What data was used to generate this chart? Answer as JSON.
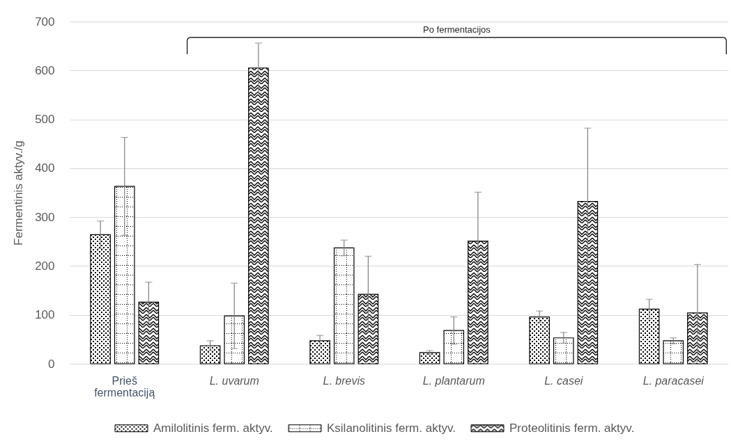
{
  "chart_data": {
    "type": "bar",
    "ylabel": "Fermentinis aktyv./g",
    "categories": [
      "Prieš fermentaciją",
      "L. uvarum",
      "L. brevis",
      "L. plantarum",
      "L. casei",
      "L. paracasei"
    ],
    "series": [
      {
        "name": "Amilolitinis ferm. aktyv.",
        "color": "#000000",
        "values": [
          264,
          37,
          47,
          23,
          96,
          112
        ],
        "errors": [
          28,
          10,
          11,
          4,
          12,
          20
        ]
      },
      {
        "name": "Ksilanolitinis ferm. aktyv.",
        "color": "#000000",
        "values": [
          363,
          98,
          237,
          68,
          53,
          47
        ],
        "errors": [
          100,
          67,
          16,
          28,
          11,
          6
        ]
      },
      {
        "name": "Proteolitinis ferm. aktyv.",
        "color": "#000000",
        "values": [
          126,
          605,
          142,
          251,
          332,
          104
        ],
        "errors": [
          41,
          51,
          78,
          100,
          150,
          99
        ]
      }
    ],
    "ylim": [
      0,
      700
    ],
    "yticks": [
      0,
      100,
      200,
      300,
      400,
      500,
      600,
      700
    ],
    "grid": "y",
    "legend": "bottom",
    "annotations": [
      "Po fermentacijos"
    ]
  }
}
